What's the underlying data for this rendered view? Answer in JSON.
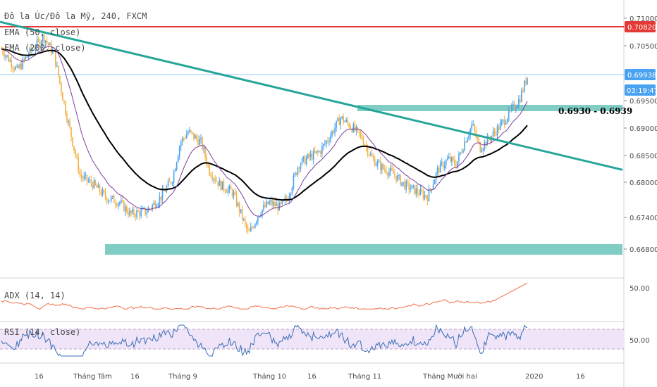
{
  "header": {
    "title": "Đô la Úc/Đô la Mỹ, 240, FXCM",
    "ema50_label": "EMA (50, close)",
    "ema200_label": "EMA (200, close)"
  },
  "indicators": {
    "adx_label": "ADX (14, 14)",
    "adx_tick": "50.00",
    "rsi_label": "RSI (14, close)",
    "rsi_tick": "50.00"
  },
  "annotations": {
    "zone_label": "0.6930 - 0.6939"
  },
  "price_tags": {
    "red_level": "0.70820",
    "current_price": "0.69938",
    "countdown": "03:19:47"
  },
  "colors": {
    "up": "#4aa3f0",
    "down": "#f5b041",
    "ema50": "#7b3fa0",
    "ema200": "#000000",
    "trendline": "#26a69a",
    "zone": "#7fcdc4",
    "resistance": "#e53935",
    "current_line": "#90caf9",
    "adx": "#f0704a",
    "rsi": "#3a6fb5",
    "rsi_band": "#efe4f8"
  },
  "chart_data": {
    "type": "candlestick",
    "symbol": "Đô la Úc/Đô la Mỹ",
    "timeframe": "240",
    "source": "FXCM",
    "y_ticks": [
      "0.71000",
      "0.70500",
      "0.69500",
      "0.69000",
      "0.68500",
      "0.68000",
      "0.67400",
      "0.66800"
    ],
    "x_ticks": [
      "16",
      "Tháng Tám",
      "16",
      "Tháng 9",
      "Tháng 10",
      "16",
      "Tháng 11",
      "Tháng Mười hai",
      "2020",
      "16"
    ],
    "ylim": [
      0.6625,
      0.7125
    ],
    "resistance_level": 0.7082,
    "current_price": 0.69938,
    "zones": [
      {
        "label": "0.6930 - 0.6939",
        "low": 0.693,
        "high": 0.6939
      },
      {
        "label": "",
        "low": 0.6668,
        "high": 0.6686
      }
    ],
    "trendline": {
      "start": 0.7095,
      "end": 0.6822
    },
    "price_path": [
      [
        0,
        0.7045
      ],
      [
        0.03,
        0.7005
      ],
      [
        0.055,
        0.704
      ],
      [
        0.08,
        0.7068
      ],
      [
        0.1,
        0.7035
      ],
      [
        0.12,
        0.694
      ],
      [
        0.15,
        0.681
      ],
      [
        0.175,
        0.6795
      ],
      [
        0.2,
        0.677
      ],
      [
        0.225,
        0.6762
      ],
      [
        0.245,
        0.674
      ],
      [
        0.275,
        0.6745
      ],
      [
        0.3,
        0.6768
      ],
      [
        0.325,
        0.6805
      ],
      [
        0.34,
        0.6872
      ],
      [
        0.355,
        0.6892
      ],
      [
        0.38,
        0.6872
      ],
      [
        0.395,
        0.6822
      ],
      [
        0.415,
        0.6795
      ],
      [
        0.44,
        0.678
      ],
      [
        0.455,
        0.6742
      ],
      [
        0.47,
        0.6702
      ],
      [
        0.49,
        0.6742
      ],
      [
        0.51,
        0.6762
      ],
      [
        0.53,
        0.6752
      ],
      [
        0.545,
        0.6772
      ],
      [
        0.565,
        0.6832
      ],
      [
        0.585,
        0.6845
      ],
      [
        0.605,
        0.6855
      ],
      [
        0.625,
        0.6885
      ],
      [
        0.645,
        0.6918
      ],
      [
        0.665,
        0.6902
      ],
      [
        0.685,
        0.6882
      ],
      [
        0.705,
        0.6842
      ],
      [
        0.725,
        0.6825
      ],
      [
        0.745,
        0.6815
      ],
      [
        0.765,
        0.6795
      ],
      [
        0.79,
        0.6782
      ],
      [
        0.81,
        0.6772
      ],
      [
        0.83,
        0.6822
      ],
      [
        0.85,
        0.6842
      ],
      [
        0.865,
        0.6832
      ],
      [
        0.88,
        0.6872
      ],
      [
        0.895,
        0.6905
      ],
      [
        0.91,
        0.6862
      ],
      [
        0.93,
        0.6882
      ],
      [
        0.95,
        0.6905
      ],
      [
        0.97,
        0.6932
      ],
      [
        0.985,
        0.6952
      ],
      [
        1,
        0.6994
      ]
    ]
  }
}
